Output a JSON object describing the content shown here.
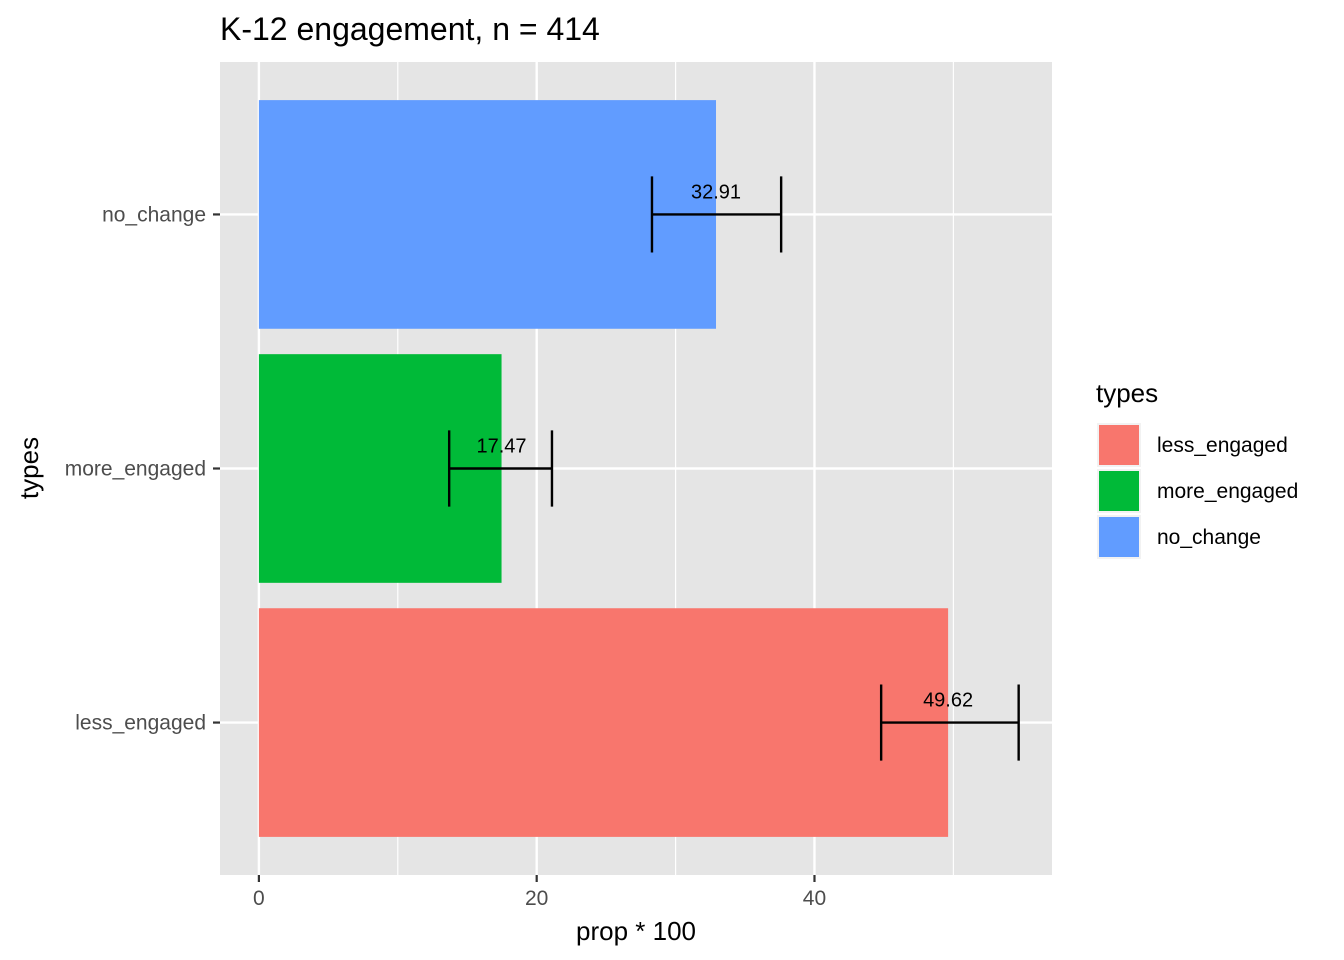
{
  "chart_data": {
    "type": "bar",
    "orientation": "horizontal",
    "title": "K-12 engagement, n = 414",
    "xlabel": "prop * 100",
    "ylabel": "types",
    "xlim": [
      -2.8,
      57.1
    ],
    "x_ticks": [
      0,
      20,
      40
    ],
    "x_tick_labels": [
      "0",
      "20",
      "40"
    ],
    "categories": [
      "less_engaged",
      "more_engaged",
      "no_change"
    ],
    "values": [
      49.62,
      17.47,
      32.91
    ],
    "labels": [
      "49.62",
      "17.47",
      "32.91"
    ],
    "error_low": [
      44.8,
      13.7,
      28.3
    ],
    "error_high": [
      54.7,
      21.1,
      37.6
    ],
    "colors": [
      "#F8766D",
      "#00BA38",
      "#619CFF"
    ],
    "grid": true,
    "panel_background": "#E5E5E5",
    "legend": {
      "title": "types",
      "position": "right",
      "entries": [
        "less_engaged",
        "more_engaged",
        "no_change"
      ]
    }
  }
}
